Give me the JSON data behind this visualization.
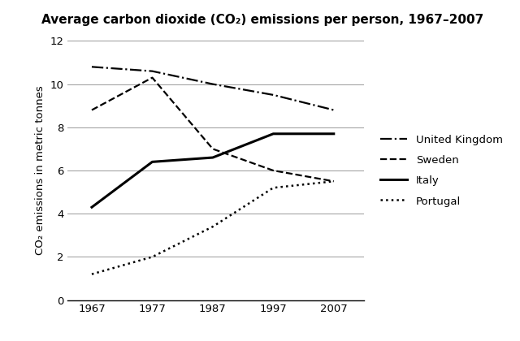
{
  "title": "Average carbon dioxide (CO₂) emissions per person, 1967–2007",
  "ylabel": "CO₂ emissions in metric tonnes",
  "years": [
    1967,
    1977,
    1987,
    1997,
    2007
  ],
  "series": {
    "United Kingdom": {
      "values": [
        10.8,
        10.6,
        10.0,
        9.5,
        8.8
      ],
      "linestyle": "dashdot",
      "linewidth": 1.6,
      "color": "#000000"
    },
    "Sweden": {
      "values": [
        8.8,
        10.3,
        7.0,
        6.0,
        5.5
      ],
      "linestyle": "dashed",
      "linewidth": 1.6,
      "color": "#000000"
    },
    "Italy": {
      "values": [
        4.3,
        6.4,
        6.6,
        7.7,
        7.7
      ],
      "linestyle": "solid",
      "linewidth": 2.2,
      "color": "#000000"
    },
    "Portugal": {
      "values": [
        1.2,
        2.0,
        3.4,
        5.2,
        5.5
      ],
      "linestyle": "dotted",
      "linewidth": 1.8,
      "color": "#000000"
    }
  },
  "xlim": [
    1963,
    2012
  ],
  "ylim": [
    0,
    12
  ],
  "yticks": [
    0,
    2,
    4,
    6,
    8,
    10,
    12
  ],
  "xticks": [
    1967,
    1977,
    1987,
    1997,
    2007
  ],
  "background_color": "#ffffff",
  "grid_color": "#999999",
  "title_fontsize": 11,
  "label_fontsize": 9.5,
  "tick_fontsize": 9.5
}
